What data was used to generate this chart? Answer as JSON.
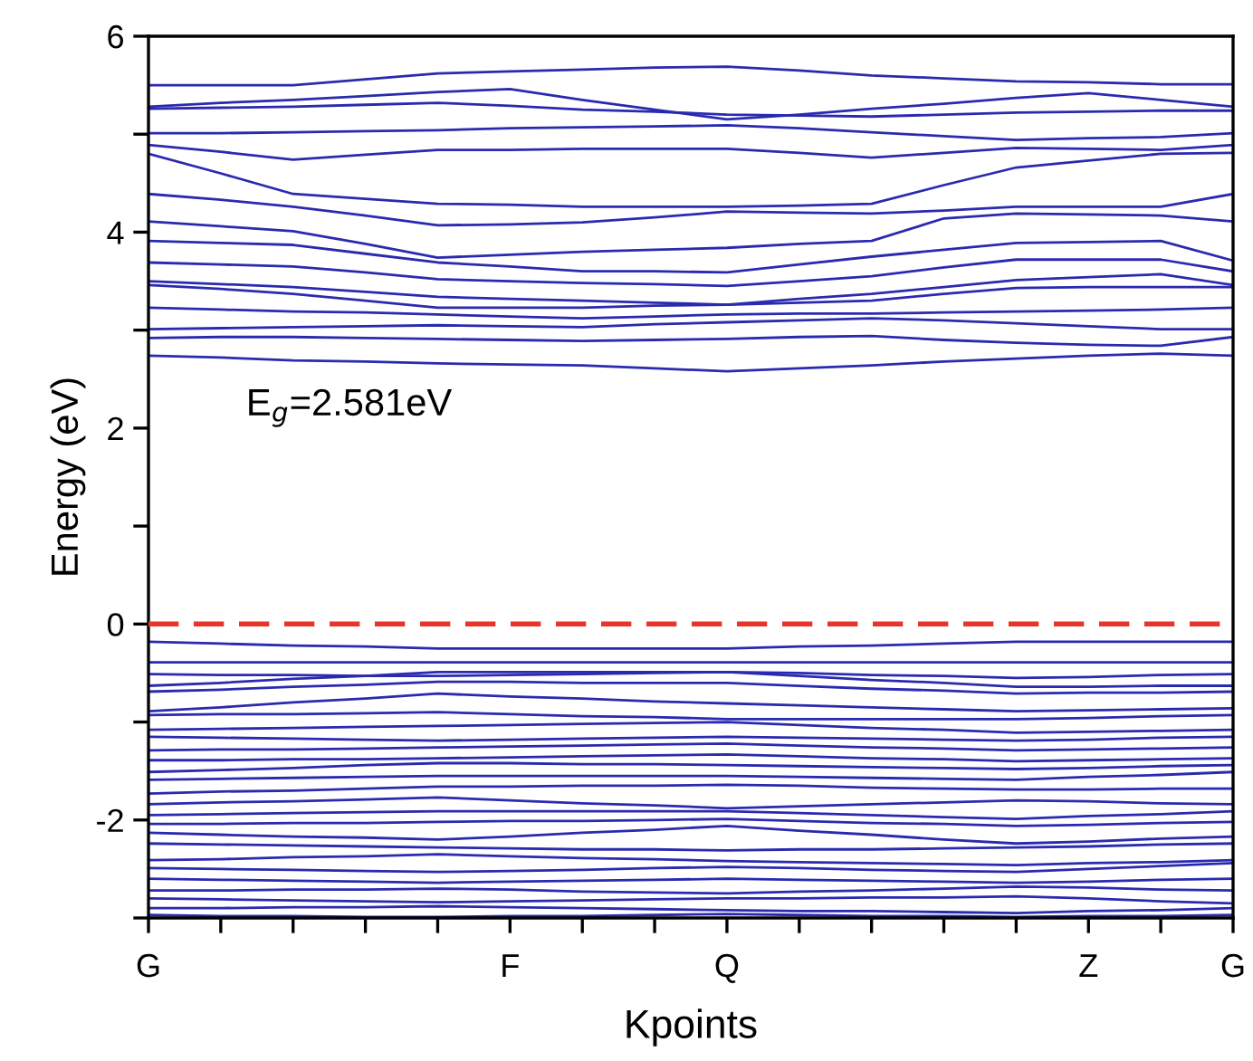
{
  "chart_data": {
    "type": "line",
    "xlabel": "Kpoints",
    "ylabel": "Energy (eV)",
    "categories": [
      "G",
      null,
      null,
      null,
      null,
      "F",
      null,
      null,
      "Q",
      null,
      null,
      null,
      null,
      "Z",
      null,
      "G"
    ],
    "ylim": [
      -3,
      6
    ],
    "yticks": [
      {
        "value": -3,
        "label": null
      },
      -2,
      {
        "value": -1,
        "label": null
      },
      0,
      {
        "value": 1,
        "label": null
      },
      2,
      {
        "value": 3,
        "label": null
      },
      4,
      {
        "value": 5,
        "label": null
      },
      6
    ],
    "grid": false,
    "legend": false,
    "marker": "none",
    "line_style": "solid",
    "ref_lines": [
      {
        "axis": "y",
        "value": 0,
        "label": null,
        "color": "#e8352a",
        "line_style": "dashed"
      }
    ],
    "annotations": [
      "E$_{g}$=2.581eV"
    ],
    "series": [
      {
        "color": "#2a2ab0",
        "values": [
          5.5,
          5.5,
          5.5,
          5.56,
          5.62,
          5.64,
          5.66,
          5.68,
          5.69,
          5.65,
          5.6,
          5.57,
          5.54,
          5.53,
          5.51,
          5.51
        ]
      },
      {
        "color": "#2a2ab0",
        "values": [
          5.28,
          5.32,
          5.35,
          5.39,
          5.43,
          5.46,
          5.35,
          5.25,
          5.15,
          5.2,
          5.26,
          5.31,
          5.37,
          5.42,
          5.35,
          5.28
        ]
      },
      {
        "color": "#2a2ab0",
        "values": [
          5.26,
          5.27,
          5.28,
          5.3,
          5.32,
          5.29,
          5.25,
          5.23,
          5.2,
          5.19,
          5.18,
          5.2,
          5.22,
          5.23,
          5.24,
          5.24
        ]
      },
      {
        "color": "#2a2ab0",
        "values": [
          5.01,
          5.01,
          5.02,
          5.03,
          5.04,
          5.06,
          5.07,
          5.08,
          5.09,
          5.06,
          5.02,
          4.98,
          4.94,
          4.96,
          4.97,
          5.01
        ]
      },
      {
        "color": "#2a2ab0",
        "values": [
          4.89,
          4.82,
          4.74,
          4.79,
          4.84,
          4.84,
          4.85,
          4.85,
          4.85,
          4.81,
          4.76,
          4.81,
          4.86,
          4.85,
          4.84,
          4.89
        ]
      },
      {
        "color": "#2a2ab0",
        "values": [
          4.8,
          4.6,
          4.39,
          4.34,
          4.29,
          4.28,
          4.26,
          4.26,
          4.26,
          4.27,
          4.29,
          4.48,
          4.66,
          4.73,
          4.8,
          4.81
        ]
      },
      {
        "color": "#2a2ab0",
        "values": [
          4.39,
          4.33,
          4.26,
          4.17,
          4.07,
          4.08,
          4.1,
          4.15,
          4.21,
          4.2,
          4.19,
          4.22,
          4.26,
          4.26,
          4.26,
          4.39
        ]
      },
      {
        "color": "#2a2ab0",
        "values": [
          4.11,
          4.06,
          4.01,
          3.88,
          3.74,
          3.77,
          3.8,
          3.82,
          3.84,
          3.88,
          3.91,
          4.14,
          4.19,
          4.18,
          4.17,
          4.11
        ]
      },
      {
        "color": "#2a2ab0",
        "values": [
          3.91,
          3.89,
          3.87,
          3.78,
          3.69,
          3.65,
          3.6,
          3.6,
          3.59,
          3.67,
          3.75,
          3.82,
          3.89,
          3.9,
          3.91,
          3.71
        ]
      },
      {
        "color": "#2a2ab0",
        "values": [
          3.69,
          3.67,
          3.65,
          3.59,
          3.52,
          3.5,
          3.48,
          3.47,
          3.45,
          3.5,
          3.55,
          3.64,
          3.72,
          3.72,
          3.72,
          3.6
        ]
      },
      {
        "color": "#2a2ab0",
        "values": [
          3.5,
          3.47,
          3.44,
          3.39,
          3.34,
          3.32,
          3.3,
          3.28,
          3.26,
          3.32,
          3.37,
          3.44,
          3.51,
          3.54,
          3.57,
          3.46
        ]
      },
      {
        "color": "#2a2ab0",
        "values": [
          3.46,
          3.42,
          3.37,
          3.3,
          3.23,
          3.23,
          3.23,
          3.25,
          3.26,
          3.28,
          3.3,
          3.37,
          3.43,
          3.44,
          3.44,
          3.44
        ]
      },
      {
        "color": "#2a2ab0",
        "values": [
          3.23,
          3.21,
          3.19,
          3.18,
          3.16,
          3.14,
          3.12,
          3.14,
          3.16,
          3.17,
          3.17,
          3.18,
          3.19,
          3.2,
          3.21,
          3.23
        ]
      },
      {
        "color": "#2a2ab0",
        "values": [
          3.01,
          3.02,
          3.03,
          3.04,
          3.05,
          3.04,
          3.03,
          3.06,
          3.08,
          3.1,
          3.12,
          3.1,
          3.07,
          3.04,
          3.01,
          3.01
        ]
      },
      {
        "color": "#2a2ab0",
        "values": [
          2.92,
          2.93,
          2.93,
          2.92,
          2.91,
          2.9,
          2.89,
          2.9,
          2.91,
          2.93,
          2.94,
          2.9,
          2.87,
          2.85,
          2.84,
          2.93
        ]
      },
      {
        "color": "#2a2ab0",
        "values": [
          2.74,
          2.72,
          2.69,
          2.68,
          2.66,
          2.65,
          2.64,
          2.61,
          2.58,
          2.61,
          2.64,
          2.68,
          2.71,
          2.74,
          2.76,
          2.74
        ]
      },
      {
        "color": "#2a2ab0",
        "values": [
          -0.18,
          -0.2,
          -0.22,
          -0.23,
          -0.25,
          -0.25,
          -0.25,
          -0.25,
          -0.25,
          -0.23,
          -0.22,
          -0.2,
          -0.18,
          -0.18,
          -0.18,
          -0.18
        ]
      },
      {
        "color": "#2a2ab0",
        "values": [
          -0.39,
          -0.39,
          -0.39,
          -0.39,
          -0.39,
          -0.39,
          -0.39,
          -0.39,
          -0.39,
          -0.39,
          -0.39,
          -0.39,
          -0.39,
          -0.39,
          -0.39,
          -0.39
        ]
      },
      {
        "color": "#2a2ab0",
        "values": [
          -0.51,
          -0.52,
          -0.52,
          -0.53,
          -0.53,
          -0.52,
          -0.51,
          -0.5,
          -0.49,
          -0.5,
          -0.52,
          -0.53,
          -0.55,
          -0.54,
          -0.52,
          -0.51
        ]
      },
      {
        "color": "#2a2ab0",
        "values": [
          -0.63,
          -0.6,
          -0.56,
          -0.53,
          -0.49,
          -0.49,
          -0.49,
          -0.49,
          -0.49,
          -0.53,
          -0.57,
          -0.6,
          -0.64,
          -0.64,
          -0.63,
          -0.63
        ]
      },
      {
        "color": "#2a2ab0",
        "values": [
          -0.69,
          -0.67,
          -0.64,
          -0.62,
          -0.59,
          -0.59,
          -0.6,
          -0.6,
          -0.6,
          -0.63,
          -0.66,
          -0.68,
          -0.71,
          -0.7,
          -0.7,
          -0.69
        ]
      },
      {
        "color": "#2a2ab0",
        "values": [
          -0.89,
          -0.85,
          -0.8,
          -0.76,
          -0.71,
          -0.74,
          -0.76,
          -0.79,
          -0.81,
          -0.83,
          -0.85,
          -0.87,
          -0.89,
          -0.88,
          -0.87,
          -0.86
        ]
      },
      {
        "color": "#2a2ab0",
        "values": [
          -0.93,
          -0.92,
          -0.92,
          -0.91,
          -0.9,
          -0.92,
          -0.94,
          -0.95,
          -0.97,
          -0.97,
          -0.97,
          -0.97,
          -0.97,
          -0.96,
          -0.94,
          -0.93
        ]
      },
      {
        "color": "#2a2ab0",
        "values": [
          -1.08,
          -1.07,
          -1.06,
          -1.05,
          -1.04,
          -1.03,
          -1.02,
          -1.01,
          -1.0,
          -1.03,
          -1.06,
          -1.08,
          -1.11,
          -1.1,
          -1.09,
          -1.08
        ]
      },
      {
        "color": "#2a2ab0",
        "values": [
          -1.15,
          -1.16,
          -1.17,
          -1.18,
          -1.19,
          -1.18,
          -1.17,
          -1.16,
          -1.15,
          -1.16,
          -1.17,
          -1.18,
          -1.19,
          -1.18,
          -1.16,
          -1.15
        ]
      },
      {
        "color": "#2a2ab0",
        "values": [
          -1.29,
          -1.28,
          -1.28,
          -1.27,
          -1.26,
          -1.25,
          -1.24,
          -1.23,
          -1.22,
          -1.24,
          -1.26,
          -1.27,
          -1.29,
          -1.28,
          -1.27,
          -1.26
        ]
      },
      {
        "color": "#2a2ab0",
        "values": [
          -1.39,
          -1.39,
          -1.38,
          -1.38,
          -1.37,
          -1.36,
          -1.35,
          -1.34,
          -1.33,
          -1.35,
          -1.37,
          -1.38,
          -1.4,
          -1.39,
          -1.38,
          -1.37
        ]
      },
      {
        "color": "#2a2ab0",
        "values": [
          -1.51,
          -1.49,
          -1.47,
          -1.44,
          -1.42,
          -1.42,
          -1.43,
          -1.43,
          -1.44,
          -1.45,
          -1.46,
          -1.47,
          -1.48,
          -1.47,
          -1.45,
          -1.44
        ]
      },
      {
        "color": "#2a2ab0",
        "values": [
          -1.59,
          -1.58,
          -1.57,
          -1.56,
          -1.55,
          -1.55,
          -1.55,
          -1.55,
          -1.55,
          -1.56,
          -1.57,
          -1.58,
          -1.59,
          -1.56,
          -1.54,
          -1.51
        ]
      },
      {
        "color": "#2a2ab0",
        "values": [
          -1.73,
          -1.71,
          -1.7,
          -1.68,
          -1.66,
          -1.66,
          -1.65,
          -1.65,
          -1.64,
          -1.65,
          -1.67,
          -1.68,
          -1.69,
          -1.69,
          -1.68,
          -1.68
        ]
      },
      {
        "color": "#2a2ab0",
        "values": [
          -1.84,
          -1.82,
          -1.81,
          -1.79,
          -1.77,
          -1.8,
          -1.83,
          -1.85,
          -1.88,
          -1.86,
          -1.84,
          -1.82,
          -1.8,
          -1.81,
          -1.83,
          -1.84
        ]
      },
      {
        "color": "#2a2ab0",
        "values": [
          -1.95,
          -1.94,
          -1.93,
          -1.92,
          -1.91,
          -1.91,
          -1.91,
          -1.91,
          -1.91,
          -1.93,
          -1.95,
          -1.97,
          -1.99,
          -1.96,
          -1.94,
          -1.91
        ]
      },
      {
        "color": "#2a2ab0",
        "values": [
          -2.04,
          -2.04,
          -2.03,
          -2.03,
          -2.02,
          -2.01,
          -2.01,
          -2.0,
          -1.99,
          -2.01,
          -2.03,
          -2.04,
          -2.06,
          -2.05,
          -2.03,
          -2.02
        ]
      },
      {
        "color": "#2a2ab0",
        "values": [
          -2.13,
          -2.15,
          -2.17,
          -2.18,
          -2.2,
          -2.17,
          -2.13,
          -2.1,
          -2.06,
          -2.11,
          -2.15,
          -2.2,
          -2.24,
          -2.22,
          -2.19,
          -2.17
        ]
      },
      {
        "color": "#2a2ab0",
        "values": [
          -2.24,
          -2.25,
          -2.26,
          -2.27,
          -2.28,
          -2.29,
          -2.3,
          -2.3,
          -2.31,
          -2.3,
          -2.3,
          -2.29,
          -2.28,
          -2.27,
          -2.25,
          -2.24
        ]
      },
      {
        "color": "#2a2ab0",
        "values": [
          -2.41,
          -2.4,
          -2.38,
          -2.37,
          -2.35,
          -2.37,
          -2.39,
          -2.4,
          -2.42,
          -2.43,
          -2.44,
          -2.45,
          -2.46,
          -2.44,
          -2.43,
          -2.41
        ]
      },
      {
        "color": "#2a2ab0",
        "values": [
          -2.49,
          -2.5,
          -2.51,
          -2.52,
          -2.53,
          -2.52,
          -2.51,
          -2.49,
          -2.48,
          -2.49,
          -2.51,
          -2.52,
          -2.53,
          -2.5,
          -2.47,
          -2.44
        ]
      },
      {
        "color": "#2a2ab0",
        "values": [
          -2.6,
          -2.61,
          -2.62,
          -2.63,
          -2.64,
          -2.63,
          -2.62,
          -2.61,
          -2.6,
          -2.61,
          -2.62,
          -2.63,
          -2.64,
          -2.63,
          -2.61,
          -2.6
        ]
      },
      {
        "color": "#2a2ab0",
        "values": [
          -2.72,
          -2.72,
          -2.71,
          -2.71,
          -2.7,
          -2.71,
          -2.73,
          -2.74,
          -2.75,
          -2.73,
          -2.72,
          -2.7,
          -2.68,
          -2.69,
          -2.71,
          -2.72
        ]
      },
      {
        "color": "#2a2ab0",
        "values": [
          -2.8,
          -2.81,
          -2.82,
          -2.83,
          -2.84,
          -2.83,
          -2.82,
          -2.81,
          -2.8,
          -2.8,
          -2.79,
          -2.79,
          -2.78,
          -2.8,
          -2.83,
          -2.85
        ]
      },
      {
        "color": "#2a2ab0",
        "values": [
          -2.9,
          -2.9,
          -2.89,
          -2.89,
          -2.88,
          -2.89,
          -2.9,
          -2.91,
          -2.92,
          -2.93,
          -2.93,
          -2.94,
          -2.95,
          -2.93,
          -2.92,
          -2.9
        ]
      },
      {
        "color": "#2a2ab0",
        "values": [
          -2.97,
          -2.98,
          -2.98,
          -2.99,
          -2.99,
          -2.98,
          -2.98,
          -2.97,
          -2.96,
          -2.97,
          -2.98,
          -2.98,
          -2.99,
          -2.98,
          -2.98,
          -2.97
        ]
      }
    ]
  }
}
